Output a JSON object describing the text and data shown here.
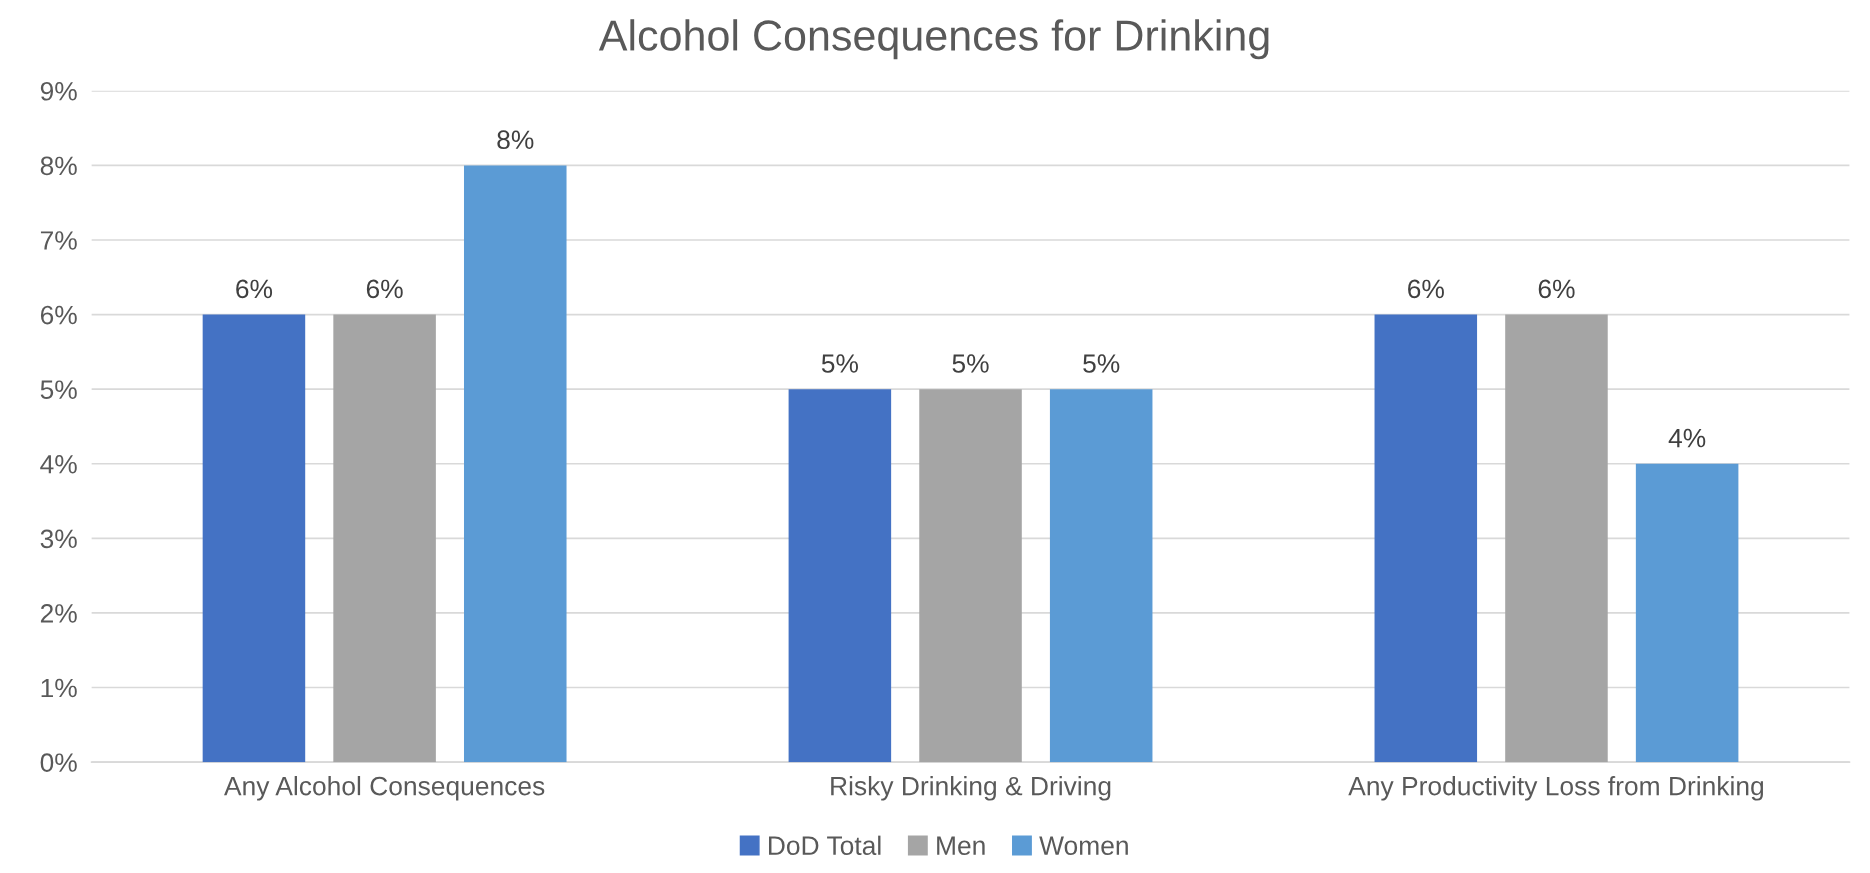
{
  "chart_data": {
    "type": "bar",
    "title": "Alcohol Consequences for Drinking",
    "categories": [
      "Any Alcohol Consequences",
      "Risky Drinking & Driving",
      "Any Productivity Loss from Drinking"
    ],
    "series": [
      {
        "name": "DoD Total",
        "color": "#4472c4",
        "values": [
          6,
          5,
          6
        ],
        "value_labels": [
          "6%",
          "5%",
          "6%"
        ]
      },
      {
        "name": "Men",
        "color": "#a5a5a5",
        "values": [
          6,
          5,
          6
        ],
        "value_labels": [
          "6%",
          "5%",
          "6%"
        ]
      },
      {
        "name": "Women",
        "color": "#5b9bd5",
        "values": [
          8,
          5,
          4
        ],
        "value_labels": [
          "8%",
          "5%",
          "4%"
        ]
      }
    ],
    "ylim": [
      0,
      9
    ],
    "yticks": [
      {
        "value": 0,
        "label": "0%"
      },
      {
        "value": 1,
        "label": "1%"
      },
      {
        "value": 2,
        "label": "2%"
      },
      {
        "value": 3,
        "label": "3%"
      },
      {
        "value": 4,
        "label": "4%"
      },
      {
        "value": 5,
        "label": "5%"
      },
      {
        "value": 6,
        "label": "6%"
      },
      {
        "value": 7,
        "label": "7%"
      },
      {
        "value": 8,
        "label": "8%"
      },
      {
        "value": 9,
        "label": "9%"
      }
    ],
    "grid": "y",
    "legend": "bottom"
  }
}
